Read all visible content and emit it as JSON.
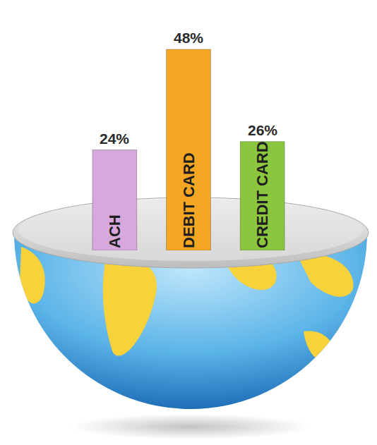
{
  "chart_data": {
    "type": "bar",
    "categories": [
      "ACH",
      "DEBIT CARD",
      "CREDIT CARD"
    ],
    "values": [
      24,
      48,
      26
    ],
    "value_labels": [
      "24%",
      "48%",
      "26%"
    ],
    "colors": [
      "#d7a8dc",
      "#f5a623",
      "#8cc63f"
    ],
    "data_labels": true,
    "tick_labels": false,
    "grid": false
  }
}
